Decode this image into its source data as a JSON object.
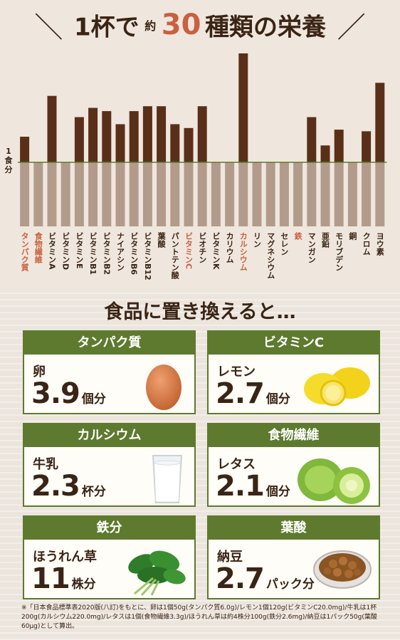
{
  "title": {
    "part1": "1杯で",
    "part2": "約",
    "part3": "30",
    "part4": "種類の栄養"
  },
  "chart_data": {
    "type": "bar",
    "reference_label": "1食分",
    "reference_value": 1.0,
    "categories": [
      "タンパク質",
      "食物繊維",
      "ビタミンA",
      "ビタミンD",
      "ビタミンE",
      "ビタミンB1",
      "ビタミンB2",
      "ナイアシン",
      "ビタミンB6",
      "ビタミンB12",
      "葉酸",
      "パントテン酸",
      "ビタミンC",
      "ビオチン",
      "ビタミンK",
      "カリウム",
      "カルシウム",
      "リン",
      "マグネシウム",
      "セレン",
      "鉄",
      "マンガン",
      "亜鉛",
      "モリブデン",
      "銅",
      "クロム",
      "ヨウ素"
    ],
    "values": [
      1.47,
      0.22,
      2.22,
      0.59,
      1.83,
      2.0,
      1.94,
      1.7,
      1.94,
      2.03,
      2.03,
      1.7,
      1.63,
      2.03,
      0.33,
      0.0,
      3.0,
      0.0,
      0.47,
      0.33,
      0.69,
      1.83,
      1.31,
      1.6,
      0.17,
      1.57,
      2.46
    ],
    "highlight": [
      "タンパク質",
      "食物繊維",
      "ビタミンC",
      "カルシウム",
      "鉄"
    ],
    "colors": {
      "above": "#5a2f1a",
      "below": "#b39b8c",
      "line": "#5e7a2e",
      "highlight_label": "#c9603f",
      "label": "#3a2415"
    }
  },
  "subtitle": "食品に置き換えると…",
  "cards": [
    {
      "nutrient": "タンパク質",
      "food": "卵",
      "amount": "3.9",
      "unit": "個分",
      "icon": "egg-icon"
    },
    {
      "nutrient": "ビタミンC",
      "food": "レモン",
      "amount": "2.7",
      "unit": "個分",
      "icon": "lemon-icon"
    },
    {
      "nutrient": "カルシウム",
      "food": "牛乳",
      "amount": "2.3",
      "unit": "杯分",
      "icon": "milk-glass-icon"
    },
    {
      "nutrient": "食物繊維",
      "food": "レタス",
      "amount": "2.1",
      "unit": "個分",
      "icon": "lettuce-icon"
    },
    {
      "nutrient": "鉄分",
      "food": "ほうれん草",
      "amount": "11",
      "unit": "株分",
      "icon": "spinach-icon"
    },
    {
      "nutrient": "葉酸",
      "food": "納豆",
      "amount": "2.7",
      "unit": "パック分",
      "icon": "natto-icon"
    }
  ],
  "footnote": "※「日本食品標準表2020版(八訂)をもとに、卵は1個50g(タンパク質6.0g)/レモン1個120g(ビタミンC20.0mg)/牛乳は1杯200g(カルシウム220.0mg)/レタスは1個(食物繊維3.3g)/ほうれん草は約4株分100g(鉄分2.6mg)/納豆は1パック50g(葉酸60μg)として算出。"
}
